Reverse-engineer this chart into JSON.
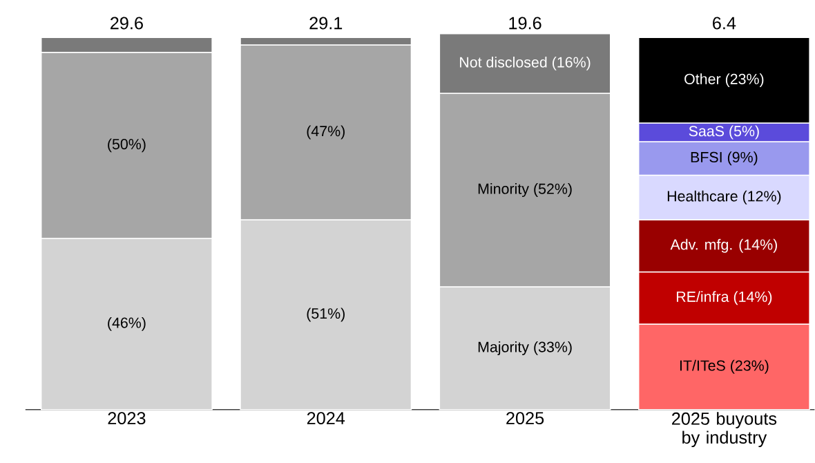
{
  "chart_data": {
    "type": "bar",
    "stacked": true,
    "categories": [
      "2023",
      "2024",
      "2025",
      "2025 buyouts by industry"
    ],
    "annotations": [
      "29.6",
      "29.1",
      "19.6",
      "6.4"
    ],
    "series": [
      {
        "color": "#d3d3d3",
        "values": [
          46,
          51,
          33,
          null
        ],
        "value_labels": [
          "(46%)",
          "(51%)",
          "Majority (33%)",
          null
        ]
      },
      {
        "color": "#a6a6a6",
        "values": [
          50,
          47,
          52,
          null
        ],
        "value_labels": [
          "(50%)",
          "(47%)",
          "Minority (52%)",
          null
        ]
      },
      {
        "color": "#7a7a7a",
        "values": [
          4,
          2,
          16,
          null
        ],
        "value_labels": [
          null,
          null,
          "Not disclosed (16%)",
          null
        ]
      },
      {
        "color": "#ff6666",
        "values": [
          null,
          null,
          null,
          23
        ],
        "value_labels": [
          null,
          null,
          null,
          "IT/ITeS (23%)"
        ]
      },
      {
        "color": "#c00000",
        "values": [
          null,
          null,
          null,
          14
        ],
        "value_labels": [
          null,
          null,
          null,
          "RE/infra (14%)"
        ]
      },
      {
        "color": "#990000",
        "values": [
          null,
          null,
          null,
          14
        ],
        "value_labels": [
          null,
          null,
          null,
          "Adv. mfg. (14%)"
        ]
      },
      {
        "color": "#d9d9ff",
        "values": [
          null,
          null,
          null,
          12
        ],
        "value_labels": [
          null,
          null,
          null,
          "Healthcare (12%)"
        ]
      },
      {
        "color": "#9999ee",
        "values": [
          null,
          null,
          null,
          9
        ],
        "value_labels": [
          null,
          null,
          null,
          "BFSI (9%)"
        ]
      },
      {
        "color": "#5b4bdb",
        "values": [
          null,
          null,
          null,
          5
        ],
        "value_labels": [
          null,
          null,
          null,
          "SaaS (5%)"
        ]
      },
      {
        "color": "#000000",
        "values": [
          null,
          null,
          null,
          23
        ],
        "value_labels": [
          null,
          null,
          null,
          "Other (23%)"
        ]
      }
    ]
  }
}
